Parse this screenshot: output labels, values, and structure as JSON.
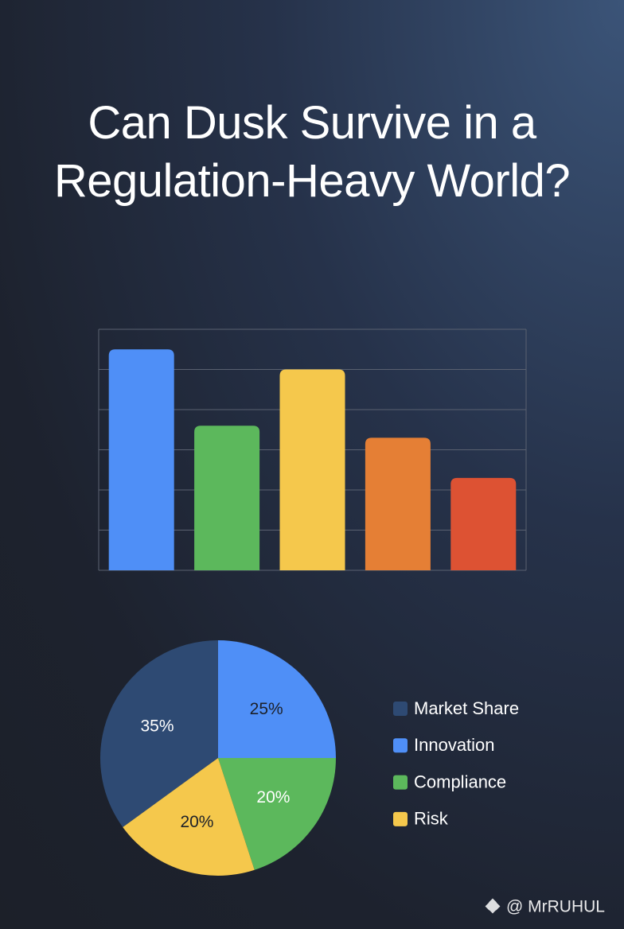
{
  "title": "Can Dusk Survive in a Regulation-Heavy World?",
  "chart_data": [
    {
      "type": "bar",
      "categories": [
        null,
        null,
        null,
        null,
        null
      ],
      "values": [
        5.5,
        3.6,
        5.0,
        3.3,
        2.3
      ],
      "colors": [
        "#4f8ff7",
        "#5cb85c",
        "#f5c84c",
        "#e57f35",
        "#dd5233"
      ],
      "ylim": [
        0,
        6
      ],
      "yticks": [
        0,
        1,
        2,
        3,
        4,
        5,
        6
      ],
      "grid": true
    },
    {
      "type": "pie",
      "categories": [
        "Market Share",
        "Innovation",
        "Compliance",
        "Risk"
      ],
      "values": [
        35,
        25,
        20,
        20
      ],
      "value_labels": [
        "35%",
        "25%",
        "20%",
        "20%"
      ],
      "colors": [
        "#2e4a73",
        "#4f8ff7",
        "#5cb85c",
        "#f5c84c"
      ],
      "legend": "right"
    }
  ],
  "watermark": "@ MrRUHUL"
}
